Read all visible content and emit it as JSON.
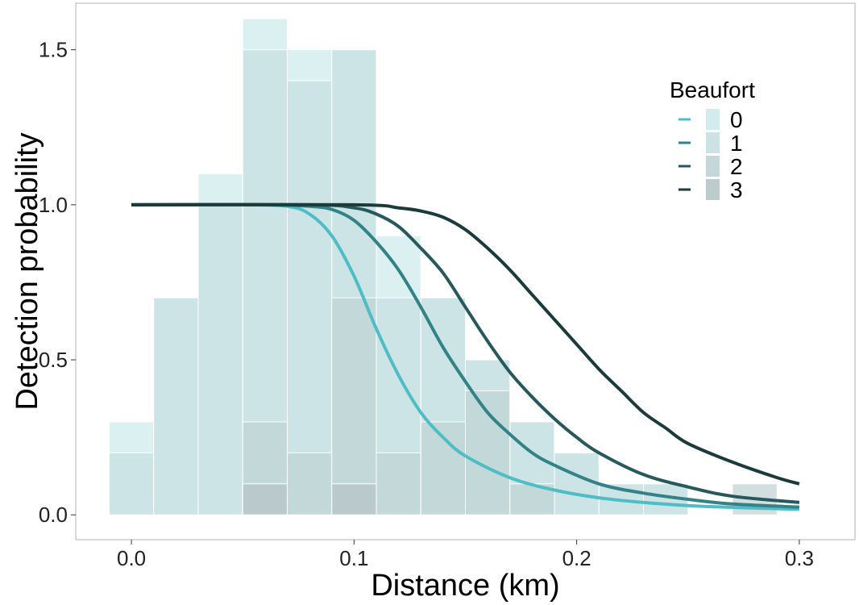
{
  "chart_data": {
    "type": "bar",
    "subtype": "histogram with detection function curves",
    "title": "",
    "xlabel": "Distance (km)",
    "ylabel": "Detection probability",
    "xlim": [
      -0.025,
      0.325
    ],
    "ylim": [
      -0.08,
      1.65
    ],
    "x_ticks": [
      0.0,
      0.1,
      0.2,
      0.3
    ],
    "x_tick_labels": [
      "0.0",
      "0.1",
      "0.2",
      "0.3"
    ],
    "y_ticks": [
      0.0,
      0.5,
      1.0,
      1.5
    ],
    "y_tick_labels": [
      "0.0",
      "0.5",
      "1.0",
      "1.5"
    ],
    "grid": false,
    "legend": {
      "title": "Beaufort",
      "placement": "top-right",
      "entries": [
        "0",
        "1",
        "2",
        "3"
      ]
    },
    "bin_width": 0.02,
    "histogram": [
      {
        "name": "0",
        "color": "#cdeaec",
        "bins": [
          {
            "x0": -0.01,
            "x1": 0.01,
            "y": 0.3
          },
          {
            "x0": 0.01,
            "x1": 0.03,
            "y": 0.7
          },
          {
            "x0": 0.03,
            "x1": 0.05,
            "y": 1.1
          },
          {
            "x0": 0.05,
            "x1": 0.07,
            "y": 1.6
          },
          {
            "x0": 0.07,
            "x1": 0.09,
            "y": 1.5
          },
          {
            "x0": 0.09,
            "x1": 0.11,
            "y": 1.5
          },
          {
            "x0": 0.11,
            "x1": 0.13,
            "y": 0.9
          },
          {
            "x0": 0.13,
            "x1": 0.15,
            "y": 0.7
          },
          {
            "x0": 0.15,
            "x1": 0.17,
            "y": 0.5
          },
          {
            "x0": 0.17,
            "x1": 0.19,
            "y": 0.3
          },
          {
            "x0": 0.19,
            "x1": 0.21,
            "y": 0.2
          },
          {
            "x0": 0.21,
            "x1": 0.23,
            "y": 0.1
          },
          {
            "x0": 0.23,
            "x1": 0.25,
            "y": 0.1
          }
        ]
      },
      {
        "name": "1",
        "color": "#c6dfe1",
        "bins": [
          {
            "x0": -0.01,
            "x1": 0.01,
            "y": 0.2
          },
          {
            "x0": 0.01,
            "x1": 0.03,
            "y": 0.7
          },
          {
            "x0": 0.03,
            "x1": 0.05,
            "y": 1.0
          },
          {
            "x0": 0.05,
            "x1": 0.07,
            "y": 1.5
          },
          {
            "x0": 0.07,
            "x1": 0.09,
            "y": 1.4
          },
          {
            "x0": 0.09,
            "x1": 0.11,
            "y": 1.5
          },
          {
            "x0": 0.11,
            "x1": 0.13,
            "y": 0.7
          },
          {
            "x0": 0.13,
            "x1": 0.15,
            "y": 0.7
          },
          {
            "x0": 0.15,
            "x1": 0.17,
            "y": 0.5
          },
          {
            "x0": 0.17,
            "x1": 0.19,
            "y": 0.3
          },
          {
            "x0": 0.19,
            "x1": 0.21,
            "y": 0.2
          },
          {
            "x0": 0.21,
            "x1": 0.23,
            "y": 0.1
          },
          {
            "x0": 0.23,
            "x1": 0.25,
            "y": 0.1
          }
        ]
      },
      {
        "name": "2",
        "color": "#bfd3d4",
        "bins": [
          {
            "x0": 0.05,
            "x1": 0.07,
            "y": 0.3
          },
          {
            "x0": 0.07,
            "x1": 0.09,
            "y": 0.2
          },
          {
            "x0": 0.09,
            "x1": 0.11,
            "y": 0.7
          },
          {
            "x0": 0.11,
            "x1": 0.13,
            "y": 0.2
          },
          {
            "x0": 0.13,
            "x1": 0.15,
            "y": 0.3
          },
          {
            "x0": 0.15,
            "x1": 0.17,
            "y": 0.4
          },
          {
            "x0": 0.17,
            "x1": 0.19,
            "y": 0.1
          },
          {
            "x0": 0.27,
            "x1": 0.29,
            "y": 0.1
          }
        ]
      },
      {
        "name": "3",
        "color": "#b7c5c6",
        "bins": [
          {
            "x0": 0.05,
            "x1": 0.07,
            "y": 0.1
          },
          {
            "x0": 0.09,
            "x1": 0.11,
            "y": 0.1
          }
        ]
      }
    ],
    "series": [
      {
        "name": "0",
        "color": "#4fbdc6",
        "x": [
          0.0,
          0.05,
          0.07,
          0.08,
          0.09,
          0.1,
          0.11,
          0.12,
          0.13,
          0.14,
          0.15,
          0.17,
          0.19,
          0.21,
          0.23,
          0.25,
          0.27,
          0.3
        ],
        "y": [
          1.0,
          1.0,
          0.995,
          0.97,
          0.9,
          0.77,
          0.6,
          0.45,
          0.33,
          0.25,
          0.19,
          0.12,
          0.08,
          0.055,
          0.04,
          0.03,
          0.024,
          0.018
        ]
      },
      {
        "name": "1",
        "color": "#338287",
        "x": [
          0.0,
          0.06,
          0.08,
          0.09,
          0.1,
          0.11,
          0.12,
          0.13,
          0.14,
          0.15,
          0.16,
          0.17,
          0.18,
          0.19,
          0.21,
          0.23,
          0.25,
          0.27,
          0.3
        ],
        "y": [
          1.0,
          1.0,
          0.995,
          0.985,
          0.95,
          0.88,
          0.79,
          0.67,
          0.54,
          0.43,
          0.33,
          0.26,
          0.2,
          0.16,
          0.1,
          0.07,
          0.05,
          0.035,
          0.025
        ]
      },
      {
        "name": "2",
        "color": "#27595c",
        "x": [
          0.0,
          0.08,
          0.1,
          0.11,
          0.12,
          0.13,
          0.14,
          0.15,
          0.16,
          0.17,
          0.18,
          0.19,
          0.2,
          0.21,
          0.23,
          0.25,
          0.27,
          0.3
        ],
        "y": [
          1.0,
          1.0,
          0.99,
          0.97,
          0.93,
          0.86,
          0.78,
          0.67,
          0.56,
          0.46,
          0.38,
          0.31,
          0.25,
          0.2,
          0.13,
          0.09,
          0.06,
          0.04
        ]
      },
      {
        "name": "3",
        "color": "#1a3a3c",
        "x": [
          0.0,
          0.1,
          0.12,
          0.13,
          0.14,
          0.15,
          0.16,
          0.17,
          0.18,
          0.19,
          0.2,
          0.21,
          0.22,
          0.23,
          0.24,
          0.25,
          0.27,
          0.29,
          0.3
        ],
        "y": [
          1.0,
          1.0,
          0.99,
          0.98,
          0.96,
          0.92,
          0.86,
          0.79,
          0.71,
          0.63,
          0.55,
          0.47,
          0.4,
          0.33,
          0.28,
          0.23,
          0.17,
          0.12,
          0.1
        ]
      }
    ]
  }
}
